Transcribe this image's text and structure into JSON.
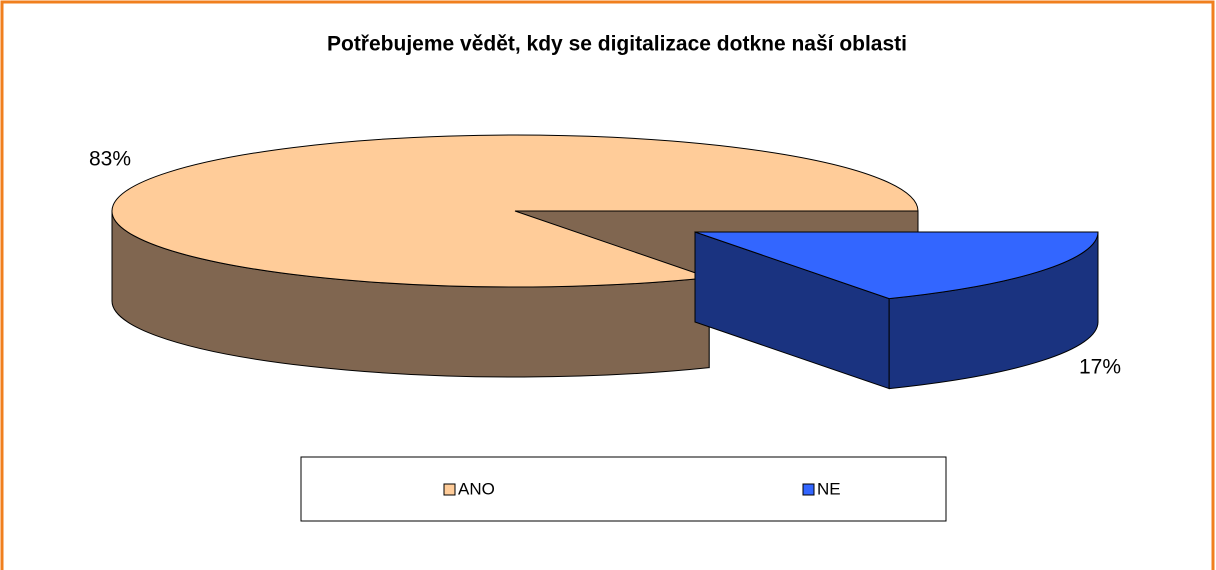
{
  "chart_data": {
    "type": "pie",
    "title": "Potřebujeme vědět, kdy se digitalizace dotkne naší oblasti",
    "categories": [
      "ANO",
      "NE"
    ],
    "values": [
      83,
      17
    ],
    "value_labels": [
      "83%",
      "17%"
    ],
    "colors": [
      "#FFCC99",
      "#3366FF"
    ],
    "side_colors": [
      "#806650",
      "#1A3380"
    ]
  }
}
